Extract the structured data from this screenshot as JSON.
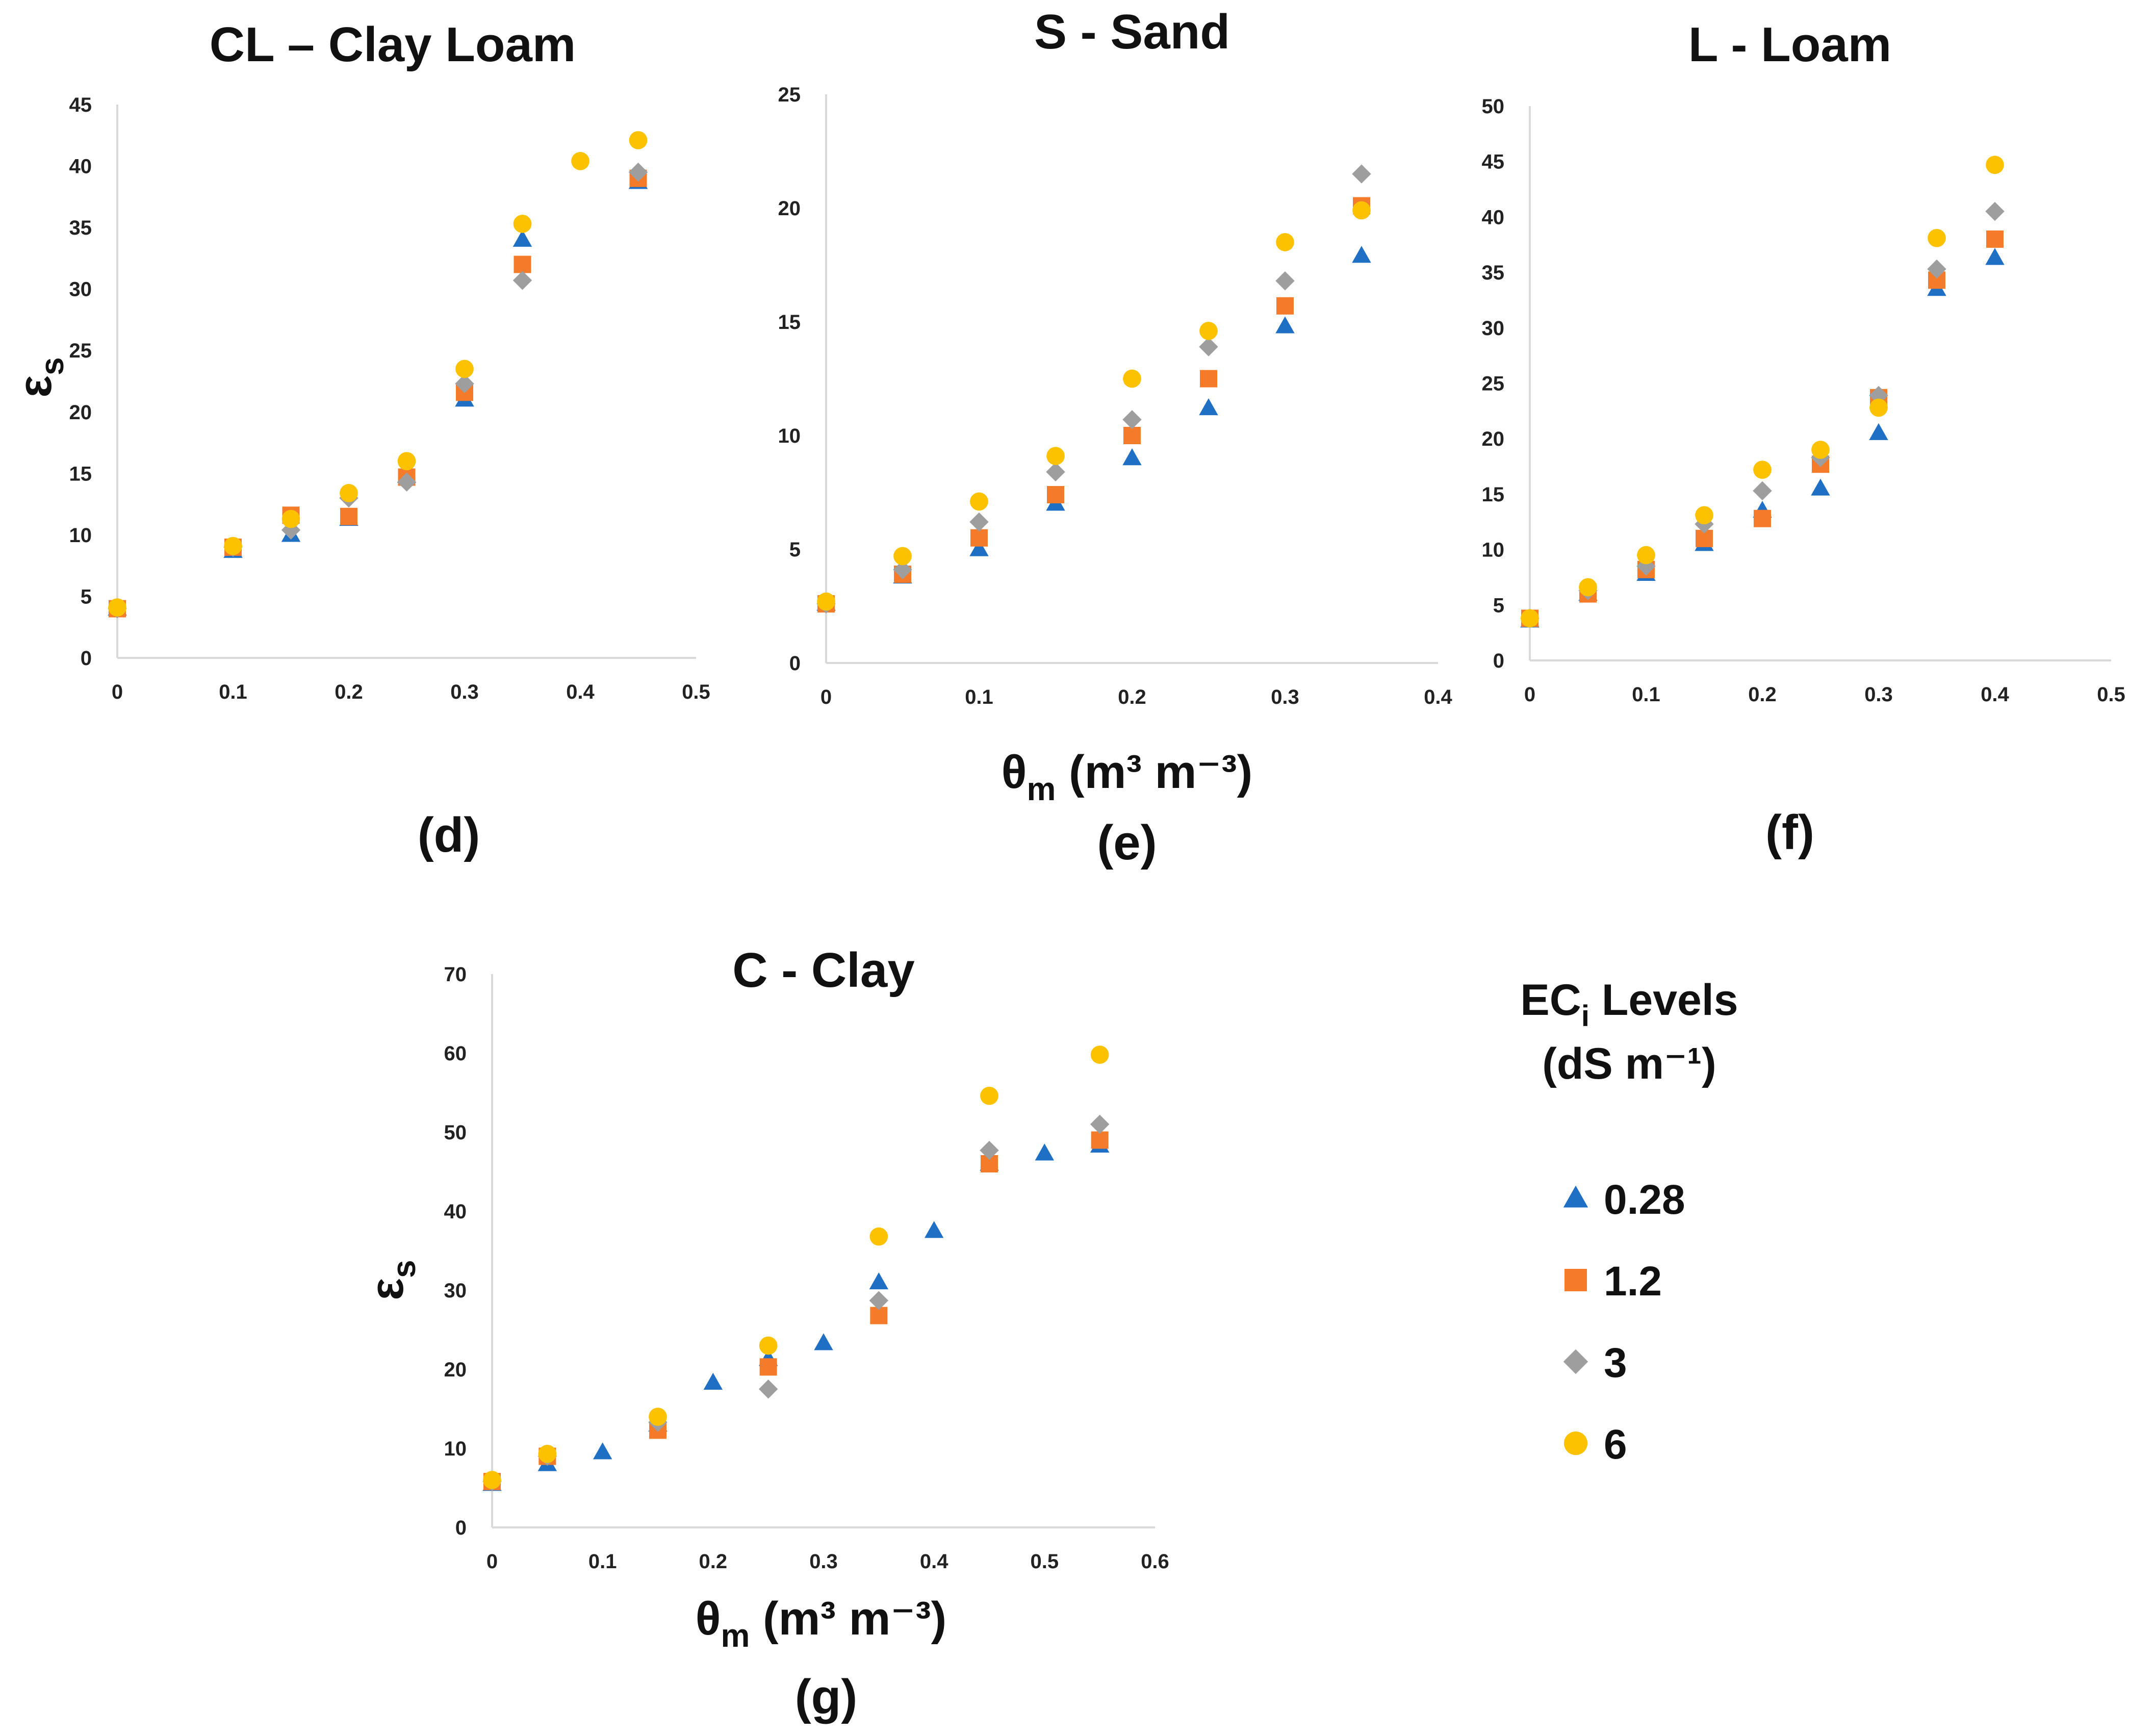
{
  "legend": {
    "title_main": "EC",
    "title_sub": "i",
    "title_rest": " Levels",
    "unit_line": "(dS m⁻¹)",
    "entries": [
      {
        "label": "0.28",
        "marker": "triangle",
        "color": "#1f6fc5"
      },
      {
        "label": "1.2",
        "marker": "square",
        "color": "#f47b2a"
      },
      {
        "label": "3",
        "marker": "diamond",
        "color": "#9e9e9e"
      },
      {
        "label": "6",
        "marker": "circle",
        "color": "#fcc200"
      }
    ]
  },
  "labels": {
    "eps_main": "ε",
    "eps_sub": "s",
    "theta_main": "θ",
    "theta_sub": "m",
    "theta_unit_e": "  (m³ m⁻³)",
    "theta_unit_g": " (m³ m⁻³)"
  },
  "chart_data": [
    {
      "id": "d",
      "type": "scatter",
      "title": "CL – Clay Loam",
      "panel_label": "(d)",
      "xlim": [
        0,
        0.5
      ],
      "xticks": [
        0,
        0.1,
        0.2,
        0.3,
        0.4,
        0.5
      ],
      "ylim": [
        0,
        45
      ],
      "yticks": [
        0,
        5,
        10,
        15,
        20,
        25,
        30,
        35,
        40,
        45
      ],
      "ylabel": "εs",
      "xlabel": "",
      "series": [
        {
          "name": "0.28",
          "x": [
            0,
            0.1,
            0.15,
            0.2,
            0.25,
            0.3,
            0.35,
            0.45
          ],
          "y": [
            4.0,
            8.7,
            10.0,
            11.3,
            14.8,
            21.0,
            34.0,
            38.7
          ]
        },
        {
          "name": "1.2",
          "x": [
            0,
            0.1,
            0.15,
            0.2,
            0.25,
            0.3,
            0.35,
            0.45
          ],
          "y": [
            4.0,
            9.0,
            11.6,
            11.5,
            14.7,
            21.6,
            32.0,
            39.0
          ]
        },
        {
          "name": "3",
          "x": [
            0,
            0.1,
            0.15,
            0.2,
            0.25,
            0.3,
            0.35,
            0.45
          ],
          "y": [
            4.0,
            9.0,
            10.4,
            13.0,
            14.3,
            22.3,
            30.7,
            39.5
          ]
        },
        {
          "name": "6",
          "x": [
            0,
            0.1,
            0.15,
            0.2,
            0.25,
            0.3,
            0.35,
            0.4,
            0.45
          ],
          "y": [
            4.1,
            9.1,
            11.3,
            13.4,
            16.0,
            23.5,
            35.3,
            40.4,
            42.1
          ]
        }
      ]
    },
    {
      "id": "e",
      "type": "scatter",
      "title": "S - Sand",
      "panel_label": "(e)",
      "xlim": [
        0,
        0.4
      ],
      "xticks": [
        0,
        0.1,
        0.2,
        0.3,
        0.4
      ],
      "ylim": [
        0,
        25
      ],
      "yticks": [
        0,
        5,
        10,
        15,
        20,
        25
      ],
      "ylabel": "",
      "xlabel": "θm (m³ m⁻³)",
      "series": [
        {
          "name": "0.28",
          "x": [
            0,
            0.05,
            0.1,
            0.15,
            0.2,
            0.25,
            0.3,
            0.35
          ],
          "y": [
            2.6,
            3.8,
            5.0,
            7.0,
            9.0,
            11.2,
            14.8,
            17.9
          ]
        },
        {
          "name": "1.2",
          "x": [
            0,
            0.05,
            0.1,
            0.15,
            0.2,
            0.25,
            0.3,
            0.35
          ],
          "y": [
            2.6,
            3.9,
            5.5,
            7.4,
            10.0,
            12.5,
            15.7,
            20.1
          ]
        },
        {
          "name": "3",
          "x": [
            0,
            0.05,
            0.1,
            0.15,
            0.2,
            0.25,
            0.3,
            0.35
          ],
          "y": [
            2.6,
            4.1,
            6.2,
            8.4,
            10.7,
            13.9,
            16.8,
            21.5
          ]
        },
        {
          "name": "6",
          "x": [
            0,
            0.05,
            0.1,
            0.15,
            0.2,
            0.25,
            0.3,
            0.35
          ],
          "y": [
            2.7,
            4.7,
            7.1,
            9.1,
            12.5,
            14.6,
            18.5,
            19.9
          ]
        }
      ]
    },
    {
      "id": "f",
      "type": "scatter",
      "title": "L - Loam",
      "panel_label": "(f)",
      "xlim": [
        0,
        0.5
      ],
      "xticks": [
        0,
        0.1,
        0.2,
        0.3,
        0.4,
        0.5
      ],
      "ylim": [
        0,
        50
      ],
      "yticks": [
        0,
        5,
        10,
        15,
        20,
        25,
        30,
        35,
        40,
        45,
        50
      ],
      "ylabel": "",
      "xlabel": "",
      "series": [
        {
          "name": "0.28",
          "x": [
            0,
            0.05,
            0.1,
            0.15,
            0.2,
            0.25,
            0.3,
            0.35,
            0.4
          ],
          "y": [
            3.6,
            6.0,
            7.8,
            10.5,
            13.5,
            15.5,
            20.5,
            33.5,
            36.3
          ]
        },
        {
          "name": "1.2",
          "x": [
            0,
            0.05,
            0.1,
            0.15,
            0.2,
            0.25,
            0.3,
            0.35,
            0.4
          ],
          "y": [
            3.8,
            6.0,
            8.2,
            11.0,
            12.8,
            17.7,
            23.7,
            34.3,
            38.0
          ]
        },
        {
          "name": "3",
          "x": [
            0,
            0.05,
            0.1,
            0.15,
            0.2,
            0.25,
            0.3,
            0.35,
            0.4
          ],
          "y": [
            3.8,
            6.3,
            8.5,
            12.3,
            15.3,
            18.3,
            23.9,
            35.3,
            40.5
          ]
        },
        {
          "name": "6",
          "x": [
            0,
            0.05,
            0.1,
            0.15,
            0.2,
            0.25,
            0.3,
            0.35,
            0.4
          ],
          "y": [
            3.8,
            6.6,
            9.5,
            13.1,
            17.2,
            19.0,
            22.8,
            38.1,
            44.7
          ]
        }
      ]
    },
    {
      "id": "g",
      "type": "scatter",
      "title": "C - Clay",
      "panel_label": "(g)",
      "xlim": [
        0,
        0.6
      ],
      "xticks": [
        0,
        0.1,
        0.2,
        0.3,
        0.4,
        0.5,
        0.6
      ],
      "ylim": [
        0,
        70
      ],
      "yticks": [
        0,
        10,
        20,
        30,
        40,
        50,
        60,
        70
      ],
      "ylabel": "εs",
      "xlabel": "θm (m³ m⁻³)",
      "series": [
        {
          "name": "0.28",
          "x": [
            0,
            0.05,
            0.1,
            0.15,
            0.2,
            0.25,
            0.3,
            0.35,
            0.4,
            0.45,
            0.5,
            0.55
          ],
          "y": [
            5.5,
            8.0,
            9.5,
            13.0,
            18.3,
            21.3,
            23.3,
            31.0,
            37.5,
            46.0,
            47.3,
            48.3
          ]
        },
        {
          "name": "1.2",
          "x": [
            0,
            0.05,
            0.15,
            0.25,
            0.35,
            0.45,
            0.55
          ],
          "y": [
            5.8,
            9.0,
            12.3,
            20.3,
            26.8,
            46.0,
            49.0
          ]
        },
        {
          "name": "3",
          "x": [
            0,
            0.05,
            0.15,
            0.25,
            0.35,
            0.45,
            0.55
          ],
          "y": [
            5.8,
            9.0,
            13.3,
            17.5,
            28.7,
            47.7,
            51.0
          ]
        },
        {
          "name": "6",
          "x": [
            0,
            0.05,
            0.15,
            0.25,
            0.35,
            0.45,
            0.55
          ],
          "y": [
            6.0,
            9.3,
            14.0,
            23.0,
            36.8,
            54.6,
            59.8
          ]
        }
      ]
    }
  ]
}
